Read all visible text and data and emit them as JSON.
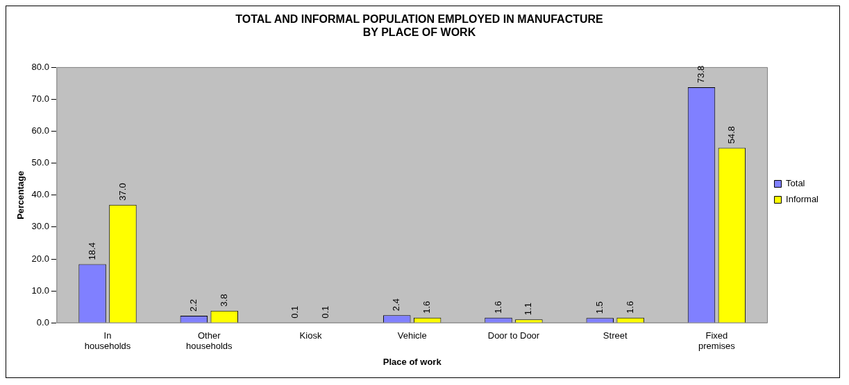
{
  "chart_data": {
    "type": "bar",
    "title": "TOTAL AND INFORMAL POPULATION EMPLOYED IN MANUFACTURE\nBY PLACE OF WORK",
    "xlabel": "Place of work",
    "ylabel": "Percentage",
    "categories": [
      "In households",
      "Other households",
      "Kiosk",
      "Vehicle",
      "Door to Door",
      "Street",
      "Fixed premises"
    ],
    "series": [
      {
        "name": "Total",
        "color": "#8080ff",
        "values": [
          18.4,
          2.2,
          0.1,
          2.4,
          1.6,
          1.5,
          73.8
        ],
        "value_labels": [
          "18.4",
          "2.2",
          "0.1",
          "2.4",
          "1.6",
          "1.5",
          "73.8"
        ]
      },
      {
        "name": "Informal",
        "color": "#ffff00",
        "values": [
          37.0,
          3.8,
          0.1,
          1.6,
          1.1,
          1.6,
          54.8
        ],
        "value_labels": [
          "37.0",
          "3.8",
          "0.1",
          "1.6",
          "1.1",
          "1.6",
          "54.8"
        ]
      }
    ],
    "ylim": [
      0,
      80
    ],
    "yticks": [
      {
        "value": 0,
        "label": "0.0"
      },
      {
        "value": 10,
        "label": "10.0"
      },
      {
        "value": 20,
        "label": "20.0"
      },
      {
        "value": 30,
        "label": "30.0"
      },
      {
        "value": 40,
        "label": "40.0"
      },
      {
        "value": 50,
        "label": "50.0"
      },
      {
        "value": 60,
        "label": "60.0"
      },
      {
        "value": 70,
        "label": "70.0"
      },
      {
        "value": 80,
        "label": "80.0"
      }
    ],
    "grid": false,
    "legend": "right"
  }
}
